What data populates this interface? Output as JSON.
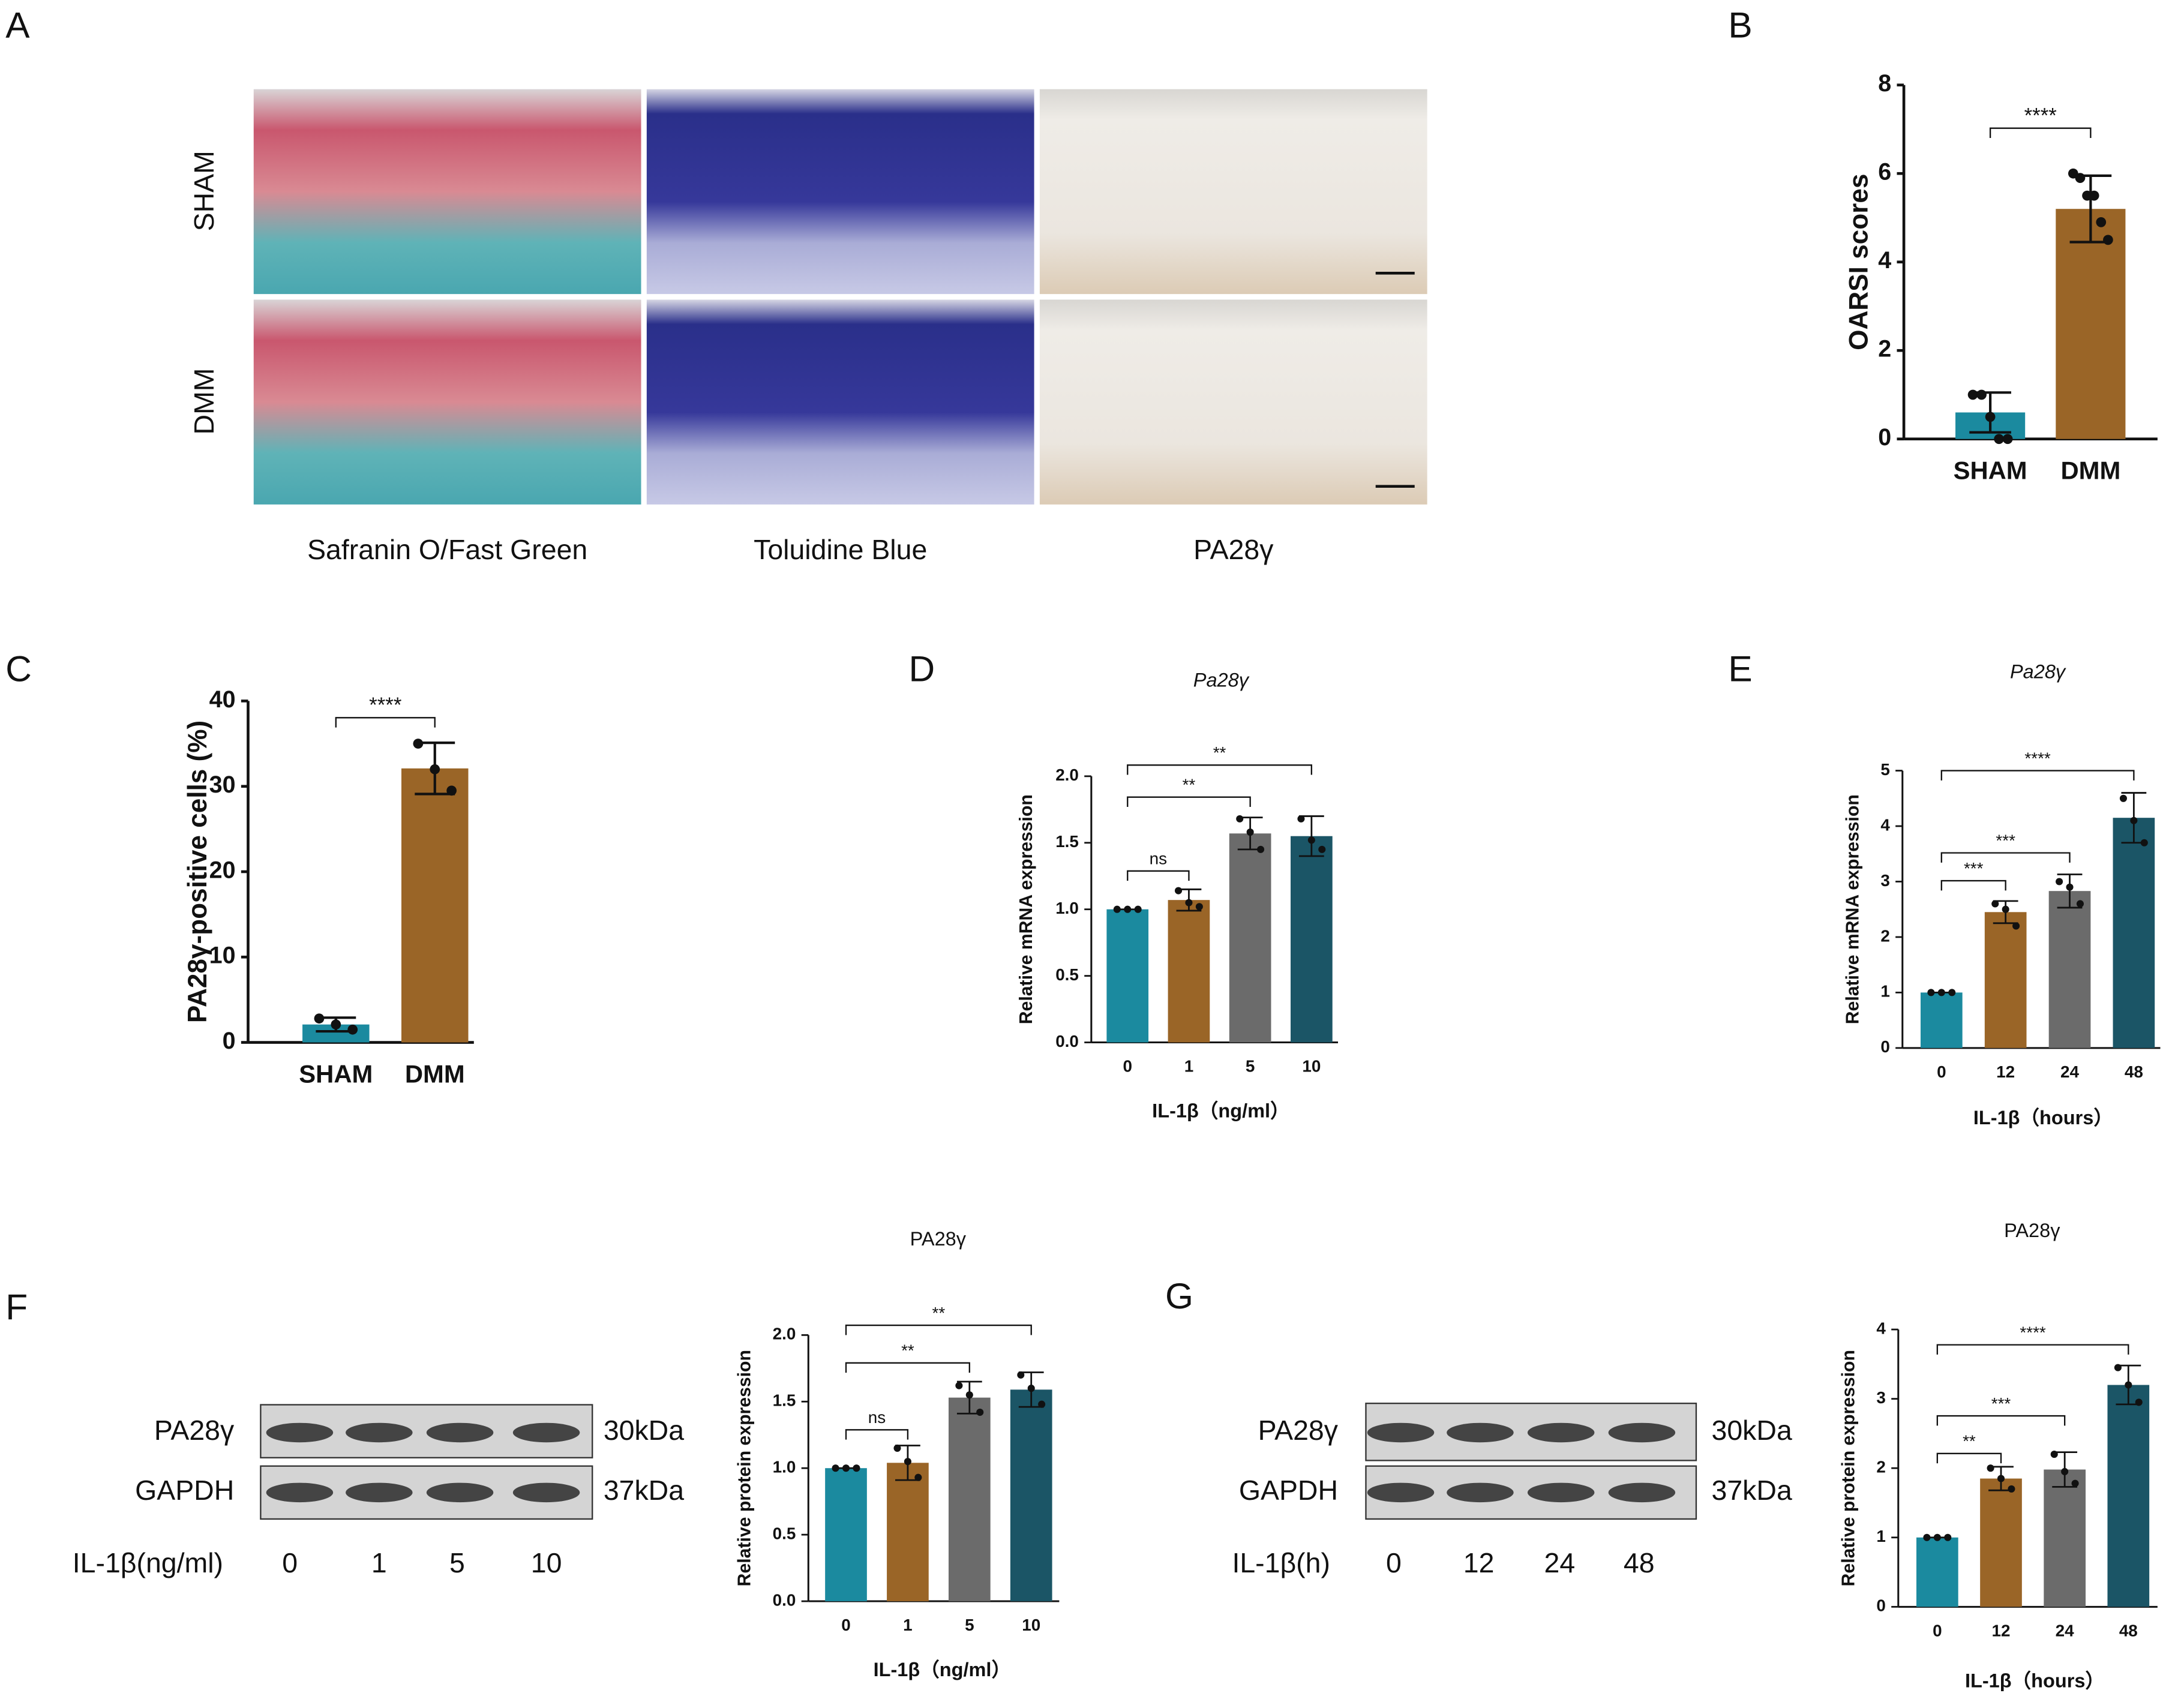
{
  "panel_labels": [
    "A",
    "B",
    "C",
    "D",
    "E",
    "F",
    "G"
  ],
  "histology": {
    "row_labels": [
      "SHAM",
      "DMM"
    ],
    "column_labels": [
      "Safranin O/Fast Green",
      "Toluidine Blue",
      "PA28γ"
    ]
  },
  "blots": [
    {
      "rows": [
        "PA28γ",
        "GAPDH"
      ],
      "sizes": [
        "30kDa",
        "37kDa"
      ],
      "treatment": "IL-1β(ng/ml)",
      "lanes": [
        "0",
        "1",
        "5",
        "10"
      ]
    },
    {
      "rows": [
        "PA28γ",
        "GAPDH"
      ],
      "sizes": [
        "30kDa",
        "37kDa"
      ],
      "treatment": "IL-1β(h)",
      "lanes": [
        "0",
        "12",
        "24",
        "48"
      ]
    }
  ],
  "chart_data": [
    {
      "type": "bar",
      "ylabel": "OARSI scores",
      "categories": [
        "SHAM",
        "DMM"
      ],
      "values": [
        0.6,
        5.2
      ],
      "errors": [
        0.45,
        0.75
      ],
      "points": [
        [
          1,
          1,
          0.5,
          0,
          0
        ],
        [
          6,
          5.9,
          5.5,
          5.5,
          4.9,
          4.5
        ]
      ],
      "colors": [
        "#1b8a9f",
        "#9a6527"
      ],
      "ylim": [
        0,
        8
      ],
      "yticks": [
        0,
        2,
        4,
        6,
        8
      ],
      "annotations": [
        "****"
      ]
    },
    {
      "type": "bar",
      "ylabel": "PA28γ-positive cells (%)",
      "categories": [
        "SHAM",
        "DMM"
      ],
      "values": [
        2.1,
        32.1
      ],
      "errors": [
        0.8,
        3
      ],
      "points": [
        [
          2.8,
          2.1,
          1.5
        ],
        [
          35,
          32,
          29.5
        ]
      ],
      "colors": [
        "#1b8a9f",
        "#9a6527"
      ],
      "ylim": [
        0,
        40
      ],
      "yticks": [
        0,
        10,
        20,
        30,
        40
      ],
      "annotations": [
        "****"
      ]
    },
    {
      "type": "bar",
      "title": "Pa28γ",
      "xlabel": "IL-1β（ng/ml）",
      "ylabel": "Relative mRNA expression",
      "categories": [
        "0",
        "1",
        "5",
        "10"
      ],
      "values": [
        1,
        1.07,
        1.57,
        1.55
      ],
      "errors": [
        0,
        0.08,
        0.12,
        0.15
      ],
      "points": [
        [
          1,
          1,
          1
        ],
        [
          1.14,
          1.05,
          1.02
        ],
        [
          1.68,
          1.58,
          1.45
        ],
        [
          1.68,
          1.52,
          1.45
        ]
      ],
      "colors": [
        "#1b8a9f",
        "#9a6527",
        "#6b6b6b",
        "#1b5566"
      ],
      "ylim": [
        0,
        2
      ],
      "yticks": [
        {
          "value": 0,
          "label": "0.0"
        },
        {
          "value": 0.5,
          "label": "0.5"
        },
        {
          "value": 1,
          "label": "1.0"
        },
        {
          "value": 1.5,
          "label": "1.5"
        },
        {
          "value": 2,
          "label": "2.0"
        }
      ],
      "annotations": [
        "ns",
        "**",
        "**"
      ]
    },
    {
      "type": "bar",
      "title": "Pa28γ",
      "xlabel": "IL-1β（hours）",
      "ylabel": "Relative mRNA expression",
      "categories": [
        "0",
        "12",
        "24",
        "48"
      ],
      "values": [
        1,
        2.45,
        2.83,
        4.15
      ],
      "errors": [
        0,
        0.2,
        0.3,
        0.45
      ],
      "points": [
        [
          1,
          1,
          1
        ],
        [
          2.6,
          2.5,
          2.2
        ],
        [
          3.0,
          2.9,
          2.6
        ],
        [
          4.5,
          4.1,
          3.7
        ]
      ],
      "colors": [
        "#1b8a9f",
        "#9a6527",
        "#6b6b6b",
        "#1b5566"
      ],
      "ylim": [
        0,
        5
      ],
      "yticks": [
        0,
        1,
        2,
        3,
        4,
        5
      ],
      "annotations": [
        "***",
        "***",
        "****"
      ]
    },
    {
      "type": "bar",
      "title": "PA28γ",
      "xlabel": "IL-1β（ng/ml）",
      "ylabel": "Relative protein expression",
      "categories": [
        "0",
        "1",
        "5",
        "10"
      ],
      "values": [
        1,
        1.04,
        1.53,
        1.59
      ],
      "errors": [
        0,
        0.13,
        0.12,
        0.13
      ],
      "points": [
        [
          1,
          1,
          1
        ],
        [
          1.15,
          1.05,
          0.93
        ],
        [
          1.62,
          1.55,
          1.42
        ],
        [
          1.7,
          1.6,
          1.48
        ]
      ],
      "colors": [
        "#1b8a9f",
        "#9a6527",
        "#6b6b6b",
        "#1b5566"
      ],
      "ylim": [
        0,
        2
      ],
      "yticks": [
        {
          "value": 0,
          "label": "0.0"
        },
        {
          "value": 0.5,
          "label": "0.5"
        },
        {
          "value": 1,
          "label": "1.0"
        },
        {
          "value": 1.5,
          "label": "1.5"
        },
        {
          "value": 2,
          "label": "2.0"
        }
      ],
      "annotations": [
        "ns",
        "**",
        "**"
      ]
    },
    {
      "type": "bar",
      "title": "PA28γ",
      "xlabel": "IL-1β（hours）",
      "ylabel": "Relative protein expression",
      "categories": [
        "0",
        "12",
        "24",
        "48"
      ],
      "values": [
        1,
        1.85,
        1.98,
        3.2
      ],
      "errors": [
        0,
        0.17,
        0.25,
        0.28
      ],
      "points": [
        [
          1,
          1,
          1
        ],
        [
          2.0,
          1.85,
          1.7
        ],
        [
          2.2,
          1.95,
          1.78
        ],
        [
          3.45,
          3.2,
          2.95
        ]
      ],
      "colors": [
        "#1b8a9f",
        "#9a6527",
        "#6b6b6b",
        "#1b5566"
      ],
      "ylim": [
        0,
        4
      ],
      "yticks": [
        0,
        1,
        2,
        3,
        4
      ],
      "annotations": [
        "**",
        "***",
        "****"
      ]
    }
  ]
}
